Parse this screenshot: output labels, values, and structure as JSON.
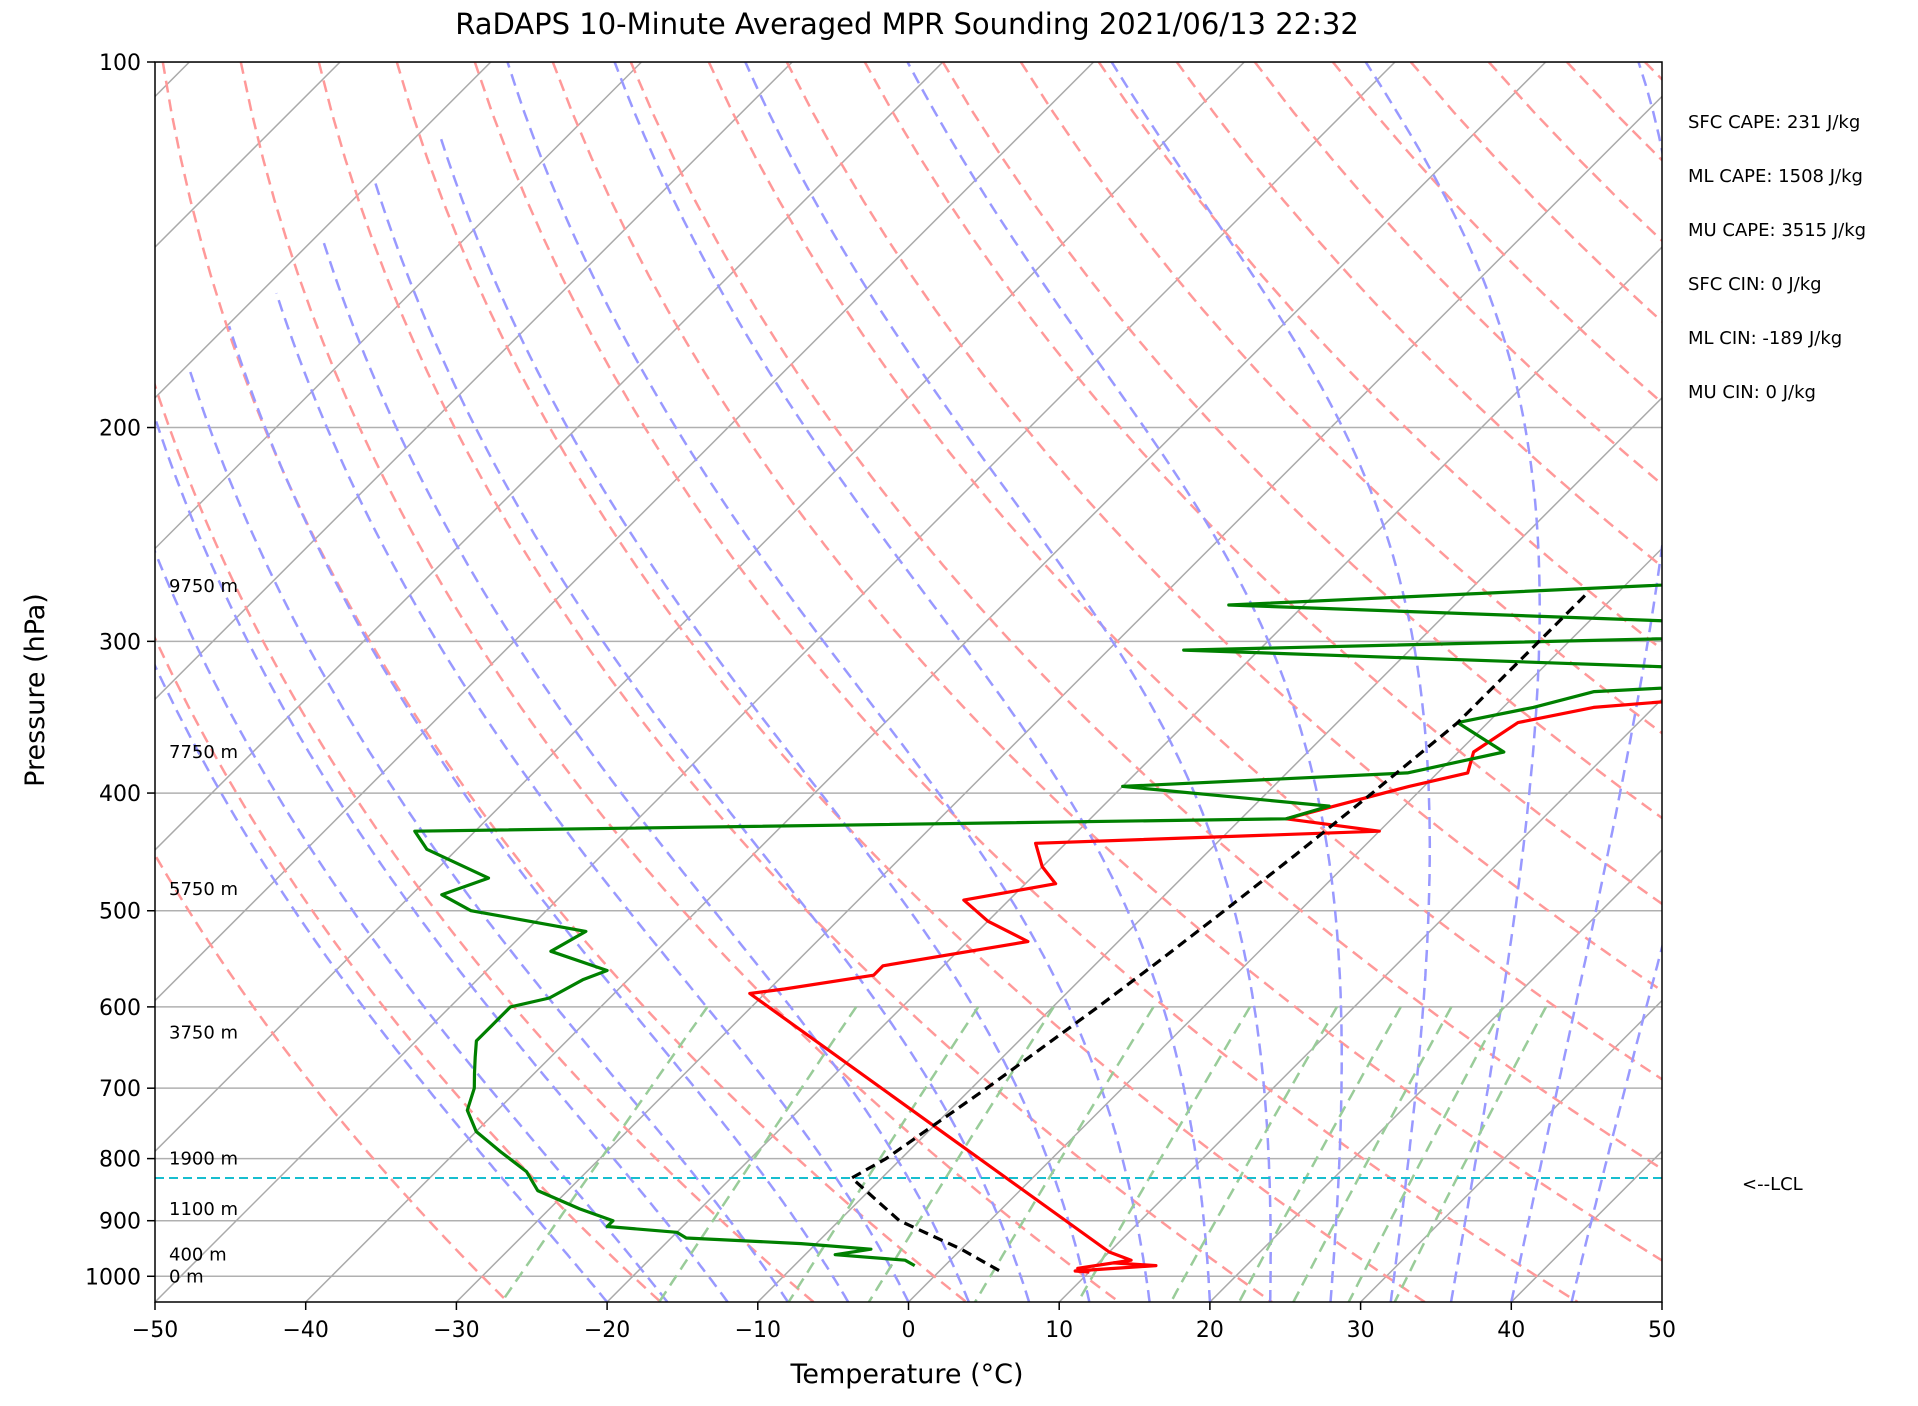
{
  "chart_data": {
    "type": "skew-t",
    "title": "RaDAPS 10-Minute Averaged MPR Sounding 2021/06/13 22:32",
    "xlabel": "Temperature (°C)",
    "ylabel": "Pressure (hPa)",
    "xlim": [
      -50,
      50
    ],
    "ylim": [
      1050,
      100
    ],
    "y_scale": "log",
    "x_ticks": [
      -50,
      -40,
      -30,
      -20,
      -10,
      0,
      10,
      20,
      30,
      40,
      50
    ],
    "x_tick_labels": [
      "−50",
      "−40",
      "−30",
      "−20",
      "−10",
      "0",
      "10",
      "20",
      "30",
      "40",
      "50"
    ],
    "y_ticks": [
      100,
      200,
      300,
      400,
      500,
      600,
      700,
      800,
      900,
      1000
    ],
    "y_tick_labels": [
      "100",
      "200",
      "300",
      "400",
      "500",
      "600",
      "700",
      "800",
      "900",
      "1000"
    ],
    "grid": true,
    "height_labels": [
      {
        "p": 270,
        "text": "9750 m"
      },
      {
        "p": 370,
        "text": "7750 m"
      },
      {
        "p": 480,
        "text": "5750 m"
      },
      {
        "p": 630,
        "text": "3750 m"
      },
      {
        "p": 800,
        "text": "1900 m"
      },
      {
        "p": 880,
        "text": "1100 m"
      },
      {
        "p": 960,
        "text": "400 m"
      },
      {
        "p": 1000,
        "text": "0 m"
      }
    ],
    "stats": [
      "SFC CAPE: 231 J/kg",
      "ML CAPE: 1508 J/kg",
      "MU CAPE: 3515 J/kg",
      "SFC CIN: 0 J/kg",
      "ML CIN: -189 J/kg",
      "MU CIN: 0 J/kg"
    ],
    "lcl": {
      "p": 830,
      "label": "<--LCL",
      "color": "#17becf"
    },
    "series": [
      {
        "color": "#ff0000",
        "points": [
          [
            265,
            25
          ],
          [
            275,
            26
          ],
          [
            285,
            23
          ],
          [
            295,
            23
          ],
          [
            310,
            25
          ],
          [
            320,
            25
          ],
          [
            330,
            18
          ],
          [
            340,
            6
          ],
          [
            350,
            2
          ],
          [
            370,
            1
          ],
          [
            385,
            2
          ],
          [
            395,
            -1
          ],
          [
            420,
            -7
          ],
          [
            430,
            0
          ],
          [
            440,
            -22
          ],
          [
            460,
            -20
          ],
          [
            475,
            -18
          ],
          [
            490,
            -23
          ],
          [
            510,
            -20
          ],
          [
            530,
            -16
          ],
          [
            555,
            -24
          ],
          [
            565,
            -24
          ],
          [
            580,
            -29
          ],
          [
            585,
            -31
          ],
          [
            955,
            10
          ],
          [
            970,
            12
          ],
          [
            980,
            10
          ],
          [
            985,
            9
          ],
          [
            975,
            11
          ],
          [
            980,
            14
          ],
          [
            990,
            9
          ],
          [
            992,
            10
          ]
        ]
      },
      {
        "color": "#008000",
        "points": [
          [
            265,
            15
          ],
          [
            280,
            -25
          ],
          [
            290,
            10
          ],
          [
            295,
            23
          ],
          [
            305,
            -25
          ],
          [
            320,
            25
          ],
          [
            330,
            5
          ],
          [
            340,
            2
          ],
          [
            350,
            -2
          ],
          [
            370,
            3
          ],
          [
            385,
            -2
          ],
          [
            395,
            -20
          ],
          [
            410,
            -5
          ],
          [
            420,
            -7
          ],
          [
            430,
            -64
          ],
          [
            445,
            -62
          ],
          [
            470,
            -56
          ],
          [
            485,
            -58
          ],
          [
            500,
            -55
          ],
          [
            520,
            -46
          ],
          [
            540,
            -47
          ],
          [
            560,
            -42
          ],
          [
            570,
            -43
          ],
          [
            590,
            -44
          ],
          [
            600,
            -46
          ],
          [
            620,
            -46
          ],
          [
            640,
            -46
          ],
          [
            660,
            -45
          ],
          [
            680,
            -44
          ],
          [
            700,
            -43
          ],
          [
            730,
            -42
          ],
          [
            760,
            -40
          ],
          [
            790,
            -37
          ],
          [
            820,
            -34
          ],
          [
            850,
            -32
          ],
          [
            880,
            -28
          ],
          [
            900,
            -25
          ],
          [
            910,
            -25
          ],
          [
            920,
            -20
          ],
          [
            930,
            -19
          ],
          [
            940,
            -11
          ],
          [
            950,
            -6
          ],
          [
            960,
            -8
          ],
          [
            970,
            -3
          ],
          [
            980,
            -2
          ]
        ]
      },
      {
        "color": "#000000",
        "dashed": true,
        "points": [
          [
            275,
            -2
          ],
          [
            300,
            -2
          ],
          [
            350,
            -2
          ],
          [
            400,
            -3
          ],
          [
            450,
            -4
          ],
          [
            500,
            -5
          ],
          [
            550,
            -6
          ],
          [
            600,
            -7
          ],
          [
            700,
            -9
          ],
          [
            800,
            -11
          ],
          [
            830,
            -12
          ],
          [
            900,
            -6
          ],
          [
            950,
            0
          ],
          [
            990,
            4
          ]
        ]
      }
    ],
    "colors": {
      "temperature": "#ff0000",
      "dewpoint": "#008000",
      "parcel": "#000000",
      "dry_adiabats": "#ff9999",
      "moist_adiabats": "#9999ff",
      "mixing_ratio": "#99cc99",
      "isotherms": "#aaaaaa",
      "lcl": "#17becf"
    }
  }
}
